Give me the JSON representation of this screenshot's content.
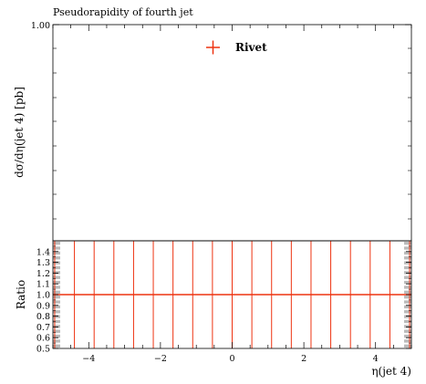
{
  "chart_data": {
    "type": "scatter",
    "title": "Pseudorapidity of fourth jet",
    "main_panel": {
      "ylabel": "dσ/dη(jet 4) [pb]",
      "ytick_labels": [
        "1.00"
      ],
      "legend": {
        "label": "Rivet",
        "position": "top-center",
        "color": "#ee3311"
      },
      "series": [
        {
          "name": "Rivet",
          "x": [],
          "y": []
        }
      ]
    },
    "ratio_panel": {
      "ylabel": "Ratio",
      "ylim": [
        0.5,
        1.5
      ],
      "ytick_labels": [
        "0.5",
        "0.6",
        "0.7",
        "0.8",
        "0.9",
        "1.0",
        "1.1",
        "1.2",
        "1.3",
        "1.4"
      ],
      "ratio_value": 1.0,
      "bin_edges": [
        -4.95,
        -4.4,
        -3.85,
        -3.3,
        -2.75,
        -2.2,
        -1.65,
        -1.1,
        -0.55,
        0.0,
        0.55,
        1.1,
        1.65,
        2.2,
        2.75,
        3.3,
        3.85,
        4.4,
        4.95
      ],
      "error_color": "#ee3311",
      "band_color": "#bbbbbb"
    },
    "xlabel": "η(jet 4)",
    "xlim": [
      -5.0,
      5.0
    ],
    "xtick_labels": [
      "−4",
      "−2",
      "0",
      "2",
      "4"
    ],
    "xtick_values": [
      -4,
      -2,
      0,
      2,
      4
    ]
  }
}
